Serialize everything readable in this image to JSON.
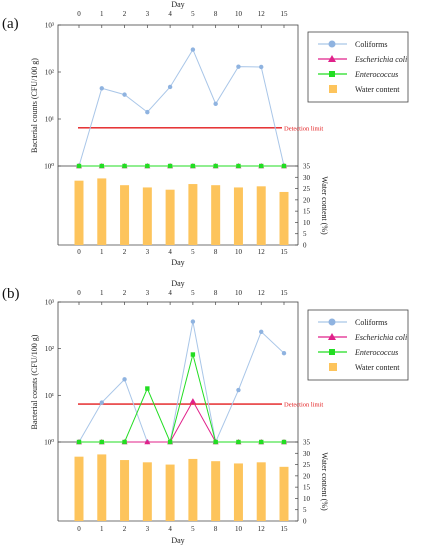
{
  "colors": {
    "coliforms": "#a9c6e8",
    "coliforms_marker": "#8fb3e0",
    "ecoli": "#e0218a",
    "enterococcus": "#22dd22",
    "water": "#fdc45c",
    "detection": "#e31a1c"
  },
  "chart_data": [
    {
      "type": "line",
      "panel_label": "(a)",
      "x_title_top": "Day",
      "x_title_bottom": "Day",
      "ylabel": "Bacterial counts (CFU/100 g)",
      "y2label": "Water content (%)",
      "yscale": "log",
      "ylim": [
        1,
        1000
      ],
      "y_ticks": [
        "10³",
        "10²",
        "10¹",
        "10⁰"
      ],
      "y2_ticks": [
        "35",
        "30",
        "25",
        "20",
        "15",
        "10",
        "5",
        "0"
      ],
      "y2lim": [
        0,
        35
      ],
      "categories": [
        "0",
        "1",
        "2",
        "3",
        "4",
        "5",
        "8",
        "10",
        "12",
        "15"
      ],
      "series": [
        {
          "name": "Coliforms",
          "key": "coliforms",
          "marker": "circle",
          "values": [
            1,
            45,
            33,
            14,
            48,
            300,
            21,
            130,
            128,
            1
          ]
        },
        {
          "name": "Escherichia coli",
          "key": "ecoli",
          "italic": true,
          "marker": "triangle",
          "values": [
            1,
            1,
            1,
            1,
            1,
            1,
            1,
            1,
            1,
            1
          ]
        },
        {
          "name": "Enterococcus",
          "key": "enterococcus",
          "italic": true,
          "marker": "square",
          "values": [
            1,
            1,
            1,
            1,
            1,
            1,
            1,
            1,
            1,
            1
          ]
        }
      ],
      "water_series": {
        "name": "Water content",
        "key": "water",
        "values": [
          28.5,
          29.5,
          26.5,
          25.5,
          24.5,
          27,
          26.5,
          25.5,
          26,
          23.5
        ]
      },
      "detection_limit": {
        "label": "Detection limit",
        "value": 6.5
      },
      "legend": "right"
    },
    {
      "type": "line",
      "panel_label": "(b)",
      "x_title_top": "Day",
      "x_title_bottom": "Day",
      "ylabel": "Bacterial counts (CFU/100 g)",
      "y2label": "Water content (%)",
      "yscale": "log",
      "ylim": [
        1,
        1000
      ],
      "y_ticks": [
        "10³",
        "10²",
        "10¹",
        "10⁰"
      ],
      "y2_ticks": [
        "35",
        "30",
        "25",
        "20",
        "15",
        "10",
        "5",
        "0"
      ],
      "y2lim": [
        0,
        35
      ],
      "categories": [
        "0",
        "1",
        "2",
        "3",
        "4",
        "5",
        "8",
        "10",
        "12",
        "15"
      ],
      "series": [
        {
          "name": "Coliforms",
          "key": "coliforms",
          "marker": "circle",
          "values": [
            1,
            7,
            22,
            1,
            1,
            380,
            1,
            13,
            230,
            80
          ]
        },
        {
          "name": "Escherichia coli",
          "key": "ecoli",
          "italic": true,
          "marker": "triangle",
          "values": [
            1,
            1,
            1,
            1,
            1,
            7.5,
            1,
            1,
            1,
            1
          ]
        },
        {
          "name": "Enterococcus",
          "key": "enterococcus",
          "italic": true,
          "marker": "square",
          "values": [
            1,
            1,
            1,
            14,
            1,
            75,
            1,
            1,
            1,
            1
          ]
        }
      ],
      "water_series": {
        "name": "Water content",
        "key": "water",
        "values": [
          28.5,
          29.5,
          27,
          26,
          25,
          27.5,
          26.5,
          25.5,
          26,
          24
        ]
      },
      "detection_limit": {
        "label": "Detection limit",
        "value": 6.5
      },
      "legend": "right"
    }
  ]
}
